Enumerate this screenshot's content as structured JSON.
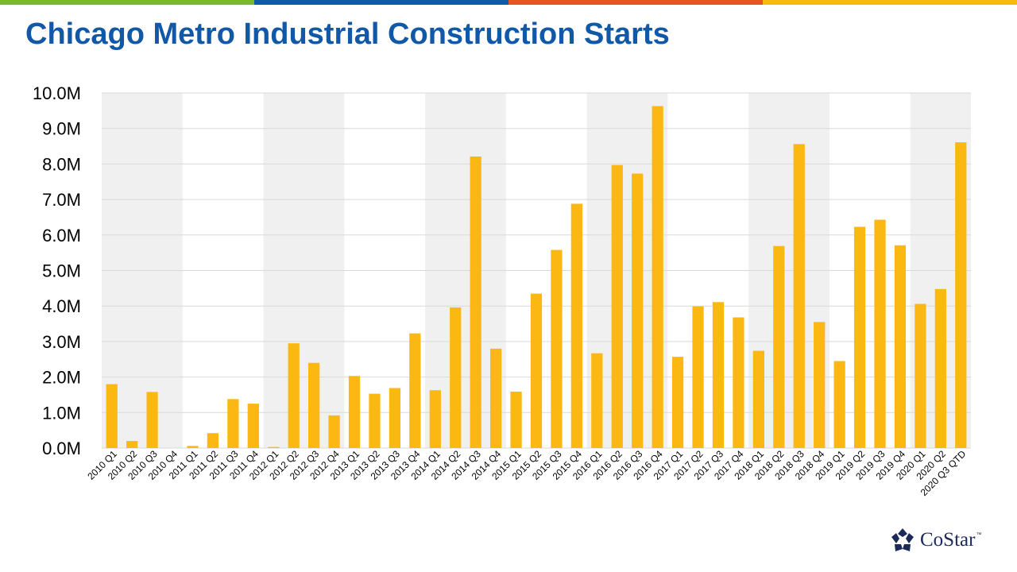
{
  "header": {
    "title": "Chicago Metro Industrial Construction Starts",
    "stripe_colors": [
      "#7ab929",
      "#1158a8",
      "#e8531e",
      "#fbb812"
    ]
  },
  "colors": {
    "bar": "#fbb812",
    "band": "#f0f0f0",
    "grid": "#d9d9d9",
    "text": "#000000"
  },
  "chart_data": {
    "type": "bar",
    "title": "Chicago Metro Industrial Construction Starts",
    "xlabel": "",
    "ylabel": "",
    "ylim": [
      0,
      10000000
    ],
    "yticks": [
      {
        "value": 0,
        "label": "0.0M"
      },
      {
        "value": 1000000,
        "label": "1.0M"
      },
      {
        "value": 2000000,
        "label": "2.0M"
      },
      {
        "value": 3000000,
        "label": "3.0M"
      },
      {
        "value": 4000000,
        "label": "4.0M"
      },
      {
        "value": 5000000,
        "label": "5.0M"
      },
      {
        "value": 6000000,
        "label": "6.0M"
      },
      {
        "value": 7000000,
        "label": "7.0M"
      },
      {
        "value": 8000000,
        "label": "8.0M"
      },
      {
        "value": 9000000,
        "label": "9.0M"
      },
      {
        "value": 10000000,
        "label": "10.0M"
      }
    ],
    "grid": true,
    "alternating_year_bands": true,
    "categories": [
      "2010 Q1",
      "2010 Q2",
      "2010 Q3",
      "2010 Q4",
      "2011 Q1",
      "2011 Q2",
      "2011 Q3",
      "2011 Q4",
      "2012 Q1",
      "2012 Q2",
      "2012 Q3",
      "2012 Q4",
      "2013 Q1",
      "2013 Q2",
      "2013 Q3",
      "2013 Q4",
      "2014 Q1",
      "2014 Q2",
      "2014 Q3",
      "2014 Q4",
      "2015 Q1",
      "2015 Q2",
      "2015 Q3",
      "2015 Q4",
      "2016 Q1",
      "2016 Q2",
      "2016 Q3",
      "2016 Q4",
      "2017 Q1",
      "2017 Q2",
      "2017 Q3",
      "2017 Q4",
      "2018 Q1",
      "2018 Q2",
      "2018 Q3",
      "2018 Q4",
      "2019 Q1",
      "2019 Q2",
      "2019 Q3",
      "2019 Q4",
      "2020 Q1",
      "2020 Q2",
      "2020 Q3 QTD"
    ],
    "values": [
      1800000,
      200000,
      1580000,
      0,
      60000,
      420000,
      1380000,
      1250000,
      30000,
      2950000,
      2400000,
      920000,
      2030000,
      1530000,
      1690000,
      3230000,
      1630000,
      3960000,
      8210000,
      2800000,
      1590000,
      4350000,
      5580000,
      6880000,
      2670000,
      7970000,
      7730000,
      9630000,
      2570000,
      3990000,
      4110000,
      3680000,
      2740000,
      5690000,
      8560000,
      3550000,
      2450000,
      6230000,
      6430000,
      5710000,
      4060000,
      4480000,
      8610000
    ]
  },
  "footer": {
    "logo_text": "CoStar",
    "logo_tm": "™",
    "logo_icon": "costar-star-icon"
  }
}
